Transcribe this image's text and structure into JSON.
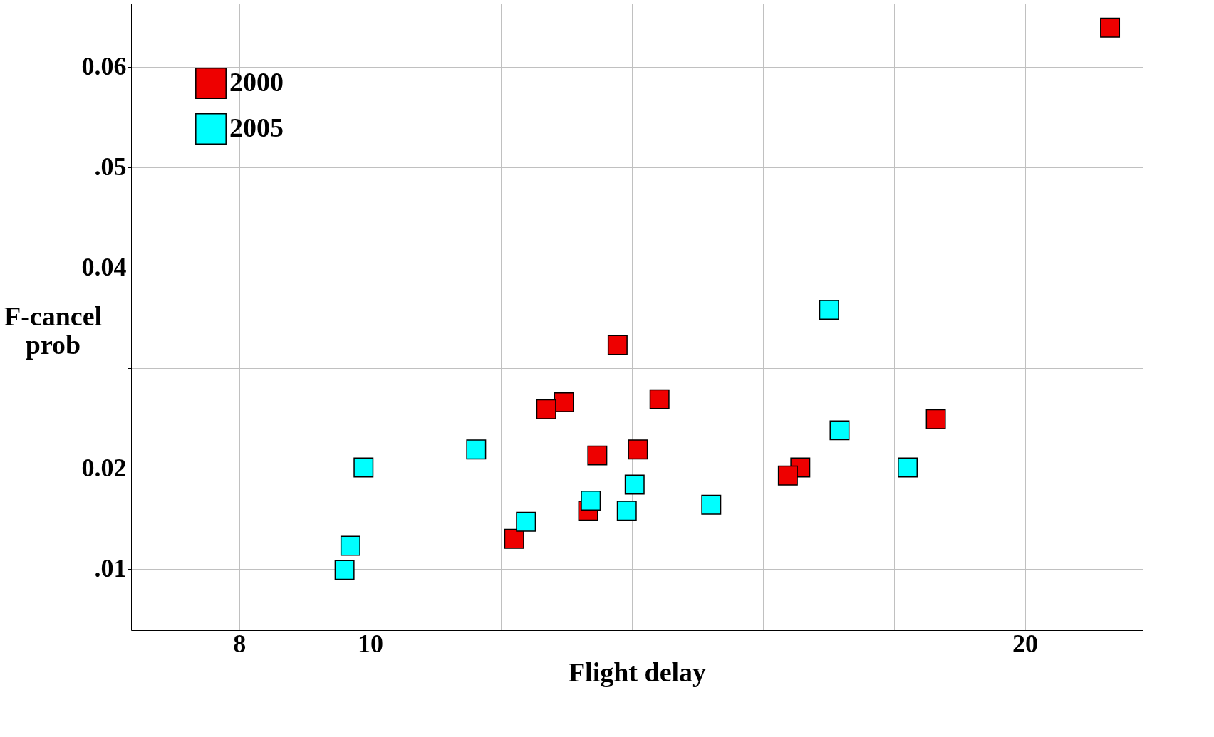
{
  "chart_data": {
    "type": "scatter",
    "xlabel": "Flight delay",
    "ylabel": "F-cancel prob",
    "xlim": [
      6.35,
      21.8
    ],
    "ylim": [
      0.0039,
      0.0663
    ],
    "xticks": [
      8,
      10,
      {
        "value": 12,
        "label": null
      },
      {
        "value": 14,
        "label": null
      },
      {
        "value": 16,
        "label": null
      },
      {
        "value": 18,
        "label": null
      },
      20
    ],
    "yticks": [
      {
        "value": 0.01,
        "label": ".01"
      },
      0.02,
      {
        "value": 0.03,
        "label": null
      },
      0.04,
      {
        "value": 0.05,
        "label": ".05"
      },
      0.06
    ],
    "grid": true,
    "legend": "top left",
    "marker": "square",
    "series": [
      {
        "name": "2000",
        "color": "#ee0000",
        "x": [
          21.3,
          13.78,
          14.42,
          12.96,
          12.69,
          14.09,
          13.47,
          13.33,
          12.2,
          16.57,
          16.38,
          18.64
        ],
        "values": [
          0.0639,
          0.0323,
          0.0269,
          0.0266,
          0.0259,
          0.0219,
          0.0213,
          0.0158,
          0.013,
          0.0201,
          0.0193,
          0.0249
        ]
      },
      {
        "name": "2005",
        "color": "#00ffff",
        "x": [
          17.01,
          17.17,
          18.21,
          11.62,
          9.9,
          14.04,
          13.37,
          13.92,
          15.21,
          12.38,
          9.7,
          9.61
        ],
        "values": [
          0.0358,
          0.0238,
          0.0201,
          0.0219,
          0.0201,
          0.0184,
          0.0168,
          0.0158,
          0.0164,
          0.0147,
          0.0123,
          0.0099
        ]
      }
    ]
  }
}
